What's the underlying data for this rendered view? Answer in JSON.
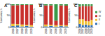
{
  "chart_data": [
    {
      "type": "bar",
      "title": "A",
      "stacked": true,
      "y_label": "Tested isolates, %",
      "categories": [
        "2016",
        "2017",
        "2018",
        "2019",
        "2020"
      ],
      "ylim": [
        0,
        100
      ],
      "yticks": [
        0,
        50,
        100
      ],
      "series": [
        {
          "name": "I",
          "color": "#2e6db4",
          "values": [
            5,
            8,
            4,
            6,
            3
          ]
        },
        {
          "name": "II",
          "color": "#f2c12e",
          "values": [
            10,
            6,
            8,
            5,
            7
          ]
        },
        {
          "name": "III",
          "color": "#c8302c",
          "values": [
            80,
            82,
            85,
            86,
            88
          ]
        },
        {
          "name": "IV",
          "color": "#3a9a48",
          "values": [
            5,
            4,
            3,
            3,
            2
          ]
        }
      ]
    },
    {
      "type": "bar",
      "title": "B",
      "stacked": true,
      "y_label": "Tested isolates, %",
      "categories": [
        "2016",
        "2017",
        "2018",
        "2019",
        "2020"
      ],
      "ylim": [
        0,
        100
      ],
      "yticks": [
        0,
        50,
        100
      ],
      "series": [
        {
          "name": "I",
          "color": "#2e6db4",
          "values": [
            4,
            6,
            3,
            5,
            4
          ]
        },
        {
          "name": "II",
          "color": "#f2c12e",
          "values": [
            8,
            5,
            6,
            4,
            5
          ]
        },
        {
          "name": "III",
          "color": "#c8302c",
          "values": [
            83,
            84,
            20,
            86,
            85
          ]
        },
        {
          "name": "IV",
          "color": "#3a9a48",
          "values": [
            5,
            5,
            71,
            5,
            6
          ]
        }
      ]
    },
    {
      "type": "bar",
      "title": "C",
      "stacked": true,
      "y_label": "Tested isolates, %",
      "legend": "right",
      "categories": [
        "2016",
        "2017",
        "2018",
        "2019",
        "2020"
      ],
      "ylim": [
        0,
        100
      ],
      "yticks": [
        0,
        50,
        100
      ],
      "series": [
        {
          "name": "I",
          "color": "#2e6db4",
          "values": [
            15,
            10,
            12,
            8,
            10
          ]
        },
        {
          "name": "II",
          "color": "#f2c12e",
          "values": [
            20,
            25,
            15,
            18,
            22
          ]
        },
        {
          "name": "III",
          "color": "#c8302c",
          "values": [
            55,
            58,
            65,
            66,
            60
          ]
        },
        {
          "name": "IV",
          "color": "#3a9a48",
          "values": [
            10,
            7,
            8,
            8,
            8
          ]
        }
      ]
    }
  ]
}
